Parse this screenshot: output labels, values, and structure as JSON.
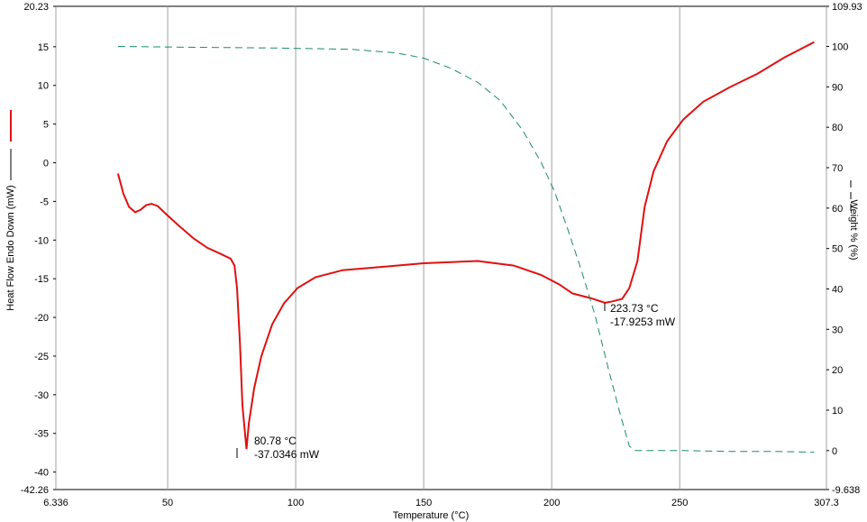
{
  "chart_data": {
    "type": "line",
    "x_label": "Temperature (°C)",
    "y_label": "Heat Flow Endo Down (mW)",
    "y2_label": "Weight % (%)",
    "xlim": [
      6.336,
      307.3
    ],
    "xticks": [
      6.336,
      50,
      100,
      150,
      200,
      250,
      307.3
    ],
    "ylim": [
      -42.26,
      20.23
    ],
    "yticks": [
      20.23,
      15,
      10,
      5,
      0,
      -5,
      -10,
      -15,
      -20,
      -25,
      -30,
      -35,
      -40,
      -42.26
    ],
    "y2lim": [
      -9.638,
      109.93
    ],
    "y2ticks": [
      109.93,
      100,
      90,
      80,
      70,
      60,
      50,
      40,
      30,
      20,
      10,
      0,
      -9.638
    ],
    "grid": "x",
    "series": [
      {
        "color": "#e01010",
        "axis": "y",
        "line_style": "solid",
        "x": [
          30.6,
          32.7,
          34.9,
          37.3,
          39.4,
          41.5,
          43.7,
          46.1,
          49.6,
          54.9,
          60.2,
          65.5,
          70.8,
          74.6,
          76.1,
          77.1,
          78.2,
          79.2,
          80.78,
          81.7,
          83.8,
          86.6,
          90.8,
          95.4,
          100.7,
          107.7,
          118.3,
          135.9,
          150,
          171.1,
          185.2,
          195.8,
          202.8,
          208.1,
          215.1,
          220.8,
          223.73,
          227.5,
          230.3,
          233.5,
          236.3,
          239.8,
          245.1,
          251.4,
          259.2,
          269.7,
          280.3,
          290.8,
          302.5
        ],
        "values": [
          -1.4,
          -4.0,
          -5.7,
          -6.4,
          -6.1,
          -5.5,
          -5.3,
          -5.6,
          -6.7,
          -8.3,
          -9.8,
          -11.0,
          -11.8,
          -12.4,
          -13.3,
          -16.2,
          -23.2,
          -31.4,
          -37.0346,
          -33.7,
          -29.1,
          -25.0,
          -20.9,
          -18.2,
          -16.2,
          -14.8,
          -13.9,
          -13.4,
          -13.0,
          -12.7,
          -13.3,
          -14.5,
          -15.7,
          -16.9,
          -17.5,
          -18.1,
          -17.9253,
          -17.6,
          -16.2,
          -12.7,
          -5.7,
          -1.1,
          2.8,
          5.6,
          7.9,
          9.8,
          11.5,
          13.6,
          15.6
        ]
      },
      {
        "color": "#1a8a6a",
        "axis": "y2",
        "line_style": "dashed",
        "x": [
          30.6,
          58.5,
          93.7,
          121.8,
          139.4,
          150,
          160.6,
          171.1,
          179.9,
          188.7,
          195.8,
          201.1,
          206.3,
          211.6,
          216.9,
          222.2,
          226.8,
          230.3,
          232.7,
          252.1,
          269.7,
          287.3,
          302.5
        ],
        "values": [
          100,
          99.8,
          99.6,
          99.3,
          98.4,
          97.1,
          94.6,
          91.1,
          86.6,
          79.2,
          71.4,
          64.1,
          54.7,
          44.6,
          33.5,
          20.1,
          8.9,
          1.1,
          0,
          0,
          -0.2,
          -0.2,
          -0.4
        ]
      }
    ],
    "annotations": [
      {
        "lines": [
          "80.78 °C",
          "-37.0346 mW"
        ]
      },
      {
        "lines": [
          "223.73 °C",
          "-17.9253 mW"
        ]
      }
    ]
  }
}
